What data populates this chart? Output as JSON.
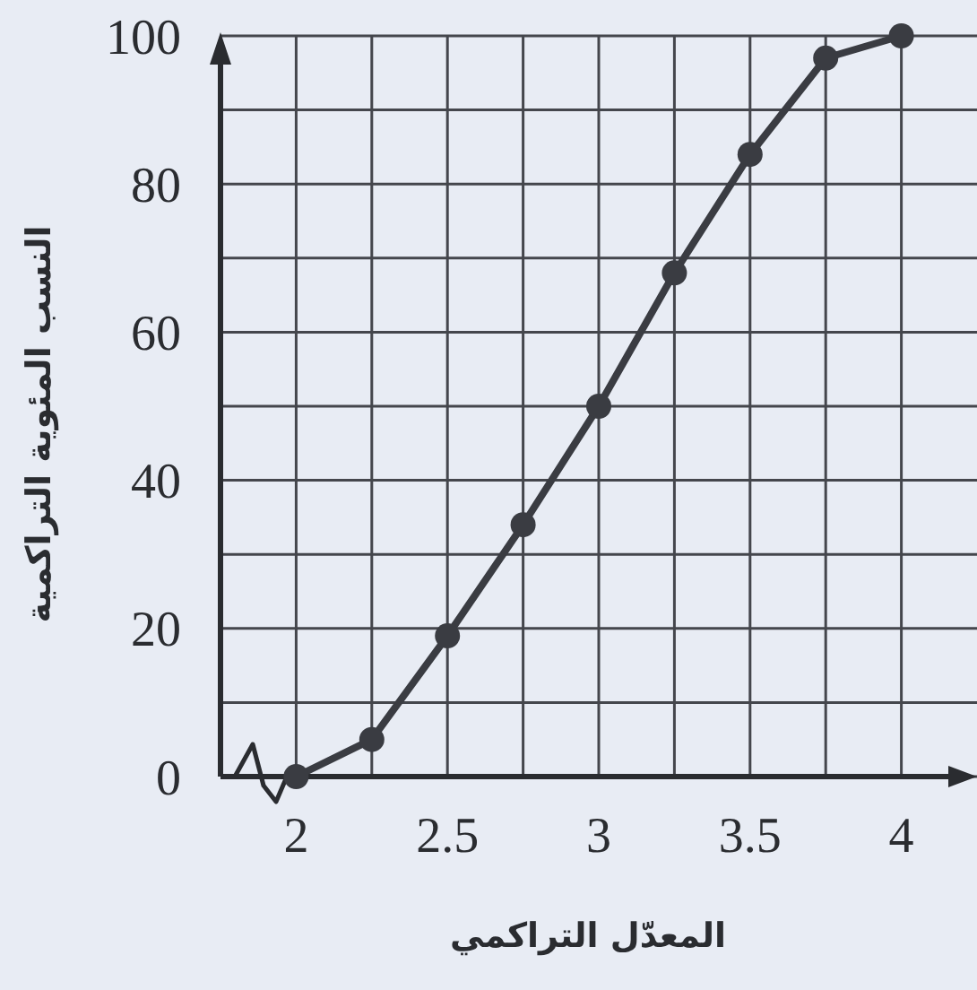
{
  "chart_data": {
    "type": "line",
    "xlabel": "المعدّل التراكمي",
    "ylabel": "النسب المئوية التراكمية",
    "x": [
      2,
      2.25,
      2.5,
      2.75,
      3,
      3.25,
      3.5,
      3.75,
      4
    ],
    "series": [
      {
        "color": "#3a3c42",
        "values": [
          0,
          5,
          19,
          34,
          50,
          68,
          84,
          97,
          100
        ]
      }
    ],
    "xlim": [
      1.75,
      4.25
    ],
    "xticks": [
      2,
      {
        "value": 2.25,
        "label": null
      },
      2.5,
      {
        "value": 2.75,
        "label": null
      },
      3,
      {
        "value": 3.25,
        "label": null
      },
      3.5,
      {
        "value": 3.75,
        "label": null
      },
      4
    ],
    "ylim": [
      0,
      100
    ],
    "yticks": [
      0,
      {
        "value": 10,
        "label": null
      },
      20,
      {
        "value": 30,
        "label": null
      },
      40,
      {
        "value": 50,
        "label": null
      },
      60,
      {
        "value": 70,
        "label": null
      },
      80,
      {
        "value": 90,
        "label": null
      },
      100
    ],
    "grid": true,
    "marker": "circle",
    "line_style": "solid"
  }
}
